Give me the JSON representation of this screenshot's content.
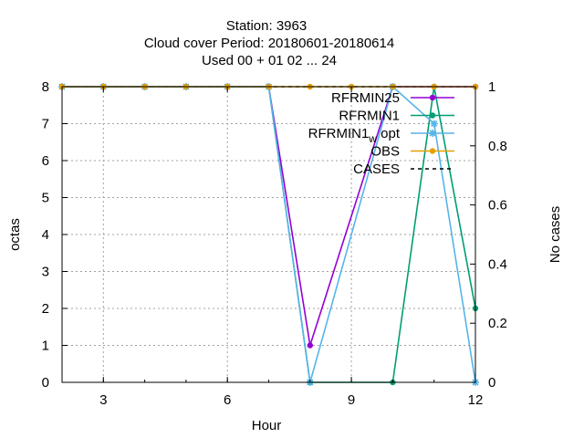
{
  "chart_data": {
    "type": "line",
    "title": [
      "Station:     3963",
      "Cloud cover   Period: 20180601-20180614",
      "Used  00 + 01 02 ... 24"
    ],
    "xlabel": "Hour",
    "ylabel": "octas",
    "y2label": "No cases",
    "xlim": [
      2,
      12
    ],
    "ylim": [
      0,
      8
    ],
    "y2lim": [
      0,
      1
    ],
    "xticks": [
      3,
      6,
      9,
      12
    ],
    "yticks": [
      0,
      1,
      2,
      3,
      4,
      5,
      6,
      7,
      8
    ],
    "y2ticks": [
      0,
      0.2,
      0.4,
      0.6,
      0.8,
      1
    ],
    "grid": true,
    "legend_position": "top-right",
    "series": [
      {
        "name": "RFRMIN25",
        "color": "#9400d3",
        "marker": "circle",
        "x": [
          2,
          3,
          4,
          5,
          6,
          7,
          8,
          10,
          11,
          12
        ],
        "y": [
          8,
          8,
          8,
          8,
          8,
          8,
          1,
          8,
          8,
          8
        ]
      },
      {
        "name": "RFRMIN1",
        "color": "#009e73",
        "marker": "circle",
        "x": [
          2,
          3,
          4,
          5,
          6,
          7,
          8,
          10,
          11,
          12
        ],
        "y": [
          8,
          8,
          8,
          8,
          8,
          8,
          0,
          0,
          8,
          2
        ]
      },
      {
        "name": "RFRMIN1w opt",
        "label_main": "RFRMIN1",
        "label_sub": "w",
        "label_tail": "opt",
        "color": "#56b4e9",
        "marker": "star",
        "x": [
          2,
          3,
          4,
          5,
          6,
          7,
          8,
          10,
          11,
          12
        ],
        "y": [
          8,
          8,
          8,
          8,
          8,
          8,
          0,
          8,
          7,
          0
        ]
      },
      {
        "name": "OBS",
        "color": "#e69f00",
        "marker": "circle",
        "x": [
          2,
          3,
          4,
          5,
          6,
          7,
          8,
          9,
          10,
          11,
          12
        ],
        "y": [
          8,
          8,
          8,
          8,
          8,
          8,
          8,
          8,
          8,
          8,
          8
        ]
      },
      {
        "name": "CASES",
        "color": "#000000",
        "dashed": true,
        "axis": "y2",
        "x": [
          2,
          3,
          4,
          5,
          6,
          7,
          8,
          9,
          10,
          11,
          12
        ],
        "y": [
          1,
          1,
          1,
          1,
          1,
          1,
          1,
          1,
          1,
          1,
          1
        ]
      }
    ]
  }
}
